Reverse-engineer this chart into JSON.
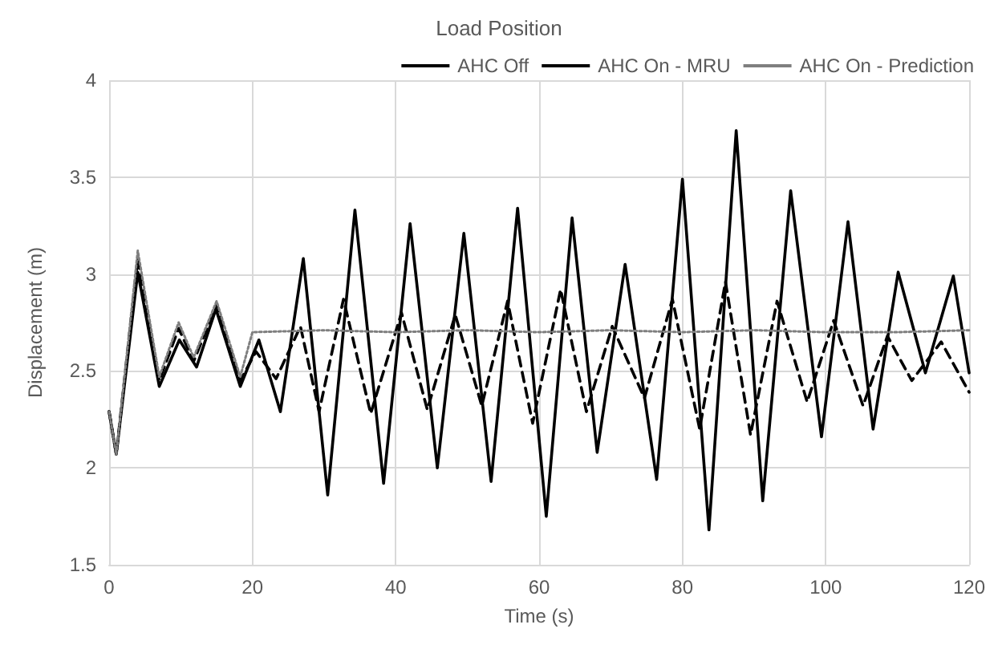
{
  "chart_data": {
    "type": "line",
    "title": "Load Position",
    "xlabel": "Time (s)",
    "ylabel": "Displacement (m)",
    "xlim": [
      0,
      120
    ],
    "xticks": [
      0,
      20,
      40,
      60,
      80,
      100,
      120
    ],
    "ylim": [
      1.5,
      4
    ],
    "yticks": [
      1.5,
      2,
      2.5,
      3,
      3.5,
      4
    ],
    "grid": true,
    "legend": "top right",
    "marker": "none",
    "series": [
      {
        "name": "AHC Off",
        "color": "#000000",
        "line_style": "solid",
        "x": [
          0,
          1,
          4,
          7,
          9.8,
          12.2,
          14.9,
          18.3,
          20.9,
          23.9,
          27.1,
          30.5,
          34.3,
          38.3,
          42,
          45.8,
          49.5,
          53.3,
          57,
          61,
          64.6,
          68.1,
          72,
          76.4,
          80,
          83.7,
          87.5,
          91.2,
          95.1,
          99.4,
          103.1,
          106.6,
          110.1,
          113.9,
          117.8,
          120
        ],
        "values": [
          2.29,
          2.07,
          3.01,
          2.42,
          2.66,
          2.52,
          2.82,
          2.42,
          2.66,
          2.29,
          3.08,
          1.86,
          3.33,
          1.92,
          3.26,
          2,
          3.21,
          1.93,
          3.34,
          1.75,
          3.29,
          2.08,
          3.05,
          1.94,
          3.49,
          1.68,
          3.74,
          1.83,
          3.43,
          2.16,
          3.27,
          2.2,
          3.01,
          2.49,
          2.99,
          2.49
        ]
      },
      {
        "name": "AHC On - MRU",
        "color": "#000000",
        "line_style": "dashed",
        "x": [
          0,
          1,
          4,
          7,
          9.7,
          11.8,
          15,
          18.3,
          20.5,
          23.3,
          26.7,
          29.3,
          32.7,
          36.5,
          40.8,
          44.4,
          48.3,
          52,
          55.6,
          59.1,
          63,
          66.6,
          70.2,
          74.7,
          78.6,
          82.4,
          86,
          89.5,
          93.2,
          97.4,
          101.1,
          105.2,
          108.6,
          112,
          116.1,
          120
        ],
        "values": [
          2.29,
          2.07,
          3.08,
          2.45,
          2.72,
          2.55,
          2.84,
          2.45,
          2.6,
          2.46,
          2.73,
          2.29,
          2.87,
          2.28,
          2.8,
          2.3,
          2.79,
          2.32,
          2.86,
          2.23,
          2.92,
          2.29,
          2.73,
          2.36,
          2.87,
          2.2,
          2.96,
          2.17,
          2.86,
          2.34,
          2.76,
          2.32,
          2.68,
          2.45,
          2.65,
          2.39
        ]
      },
      {
        "name": "AHC On - Prediction",
        "color": "#7f7f7f",
        "line_style": "dotted",
        "x": [
          0,
          1,
          4,
          7,
          9.7,
          11.8,
          15,
          18.3,
          20,
          30,
          40,
          50,
          60,
          70,
          80,
          90,
          100,
          110,
          120
        ],
        "values": [
          2.29,
          2.07,
          3.12,
          2.47,
          2.75,
          2.57,
          2.86,
          2.47,
          2.7,
          2.71,
          2.7,
          2.71,
          2.7,
          2.71,
          2.7,
          2.71,
          2.7,
          2.7,
          2.71
        ]
      }
    ]
  }
}
